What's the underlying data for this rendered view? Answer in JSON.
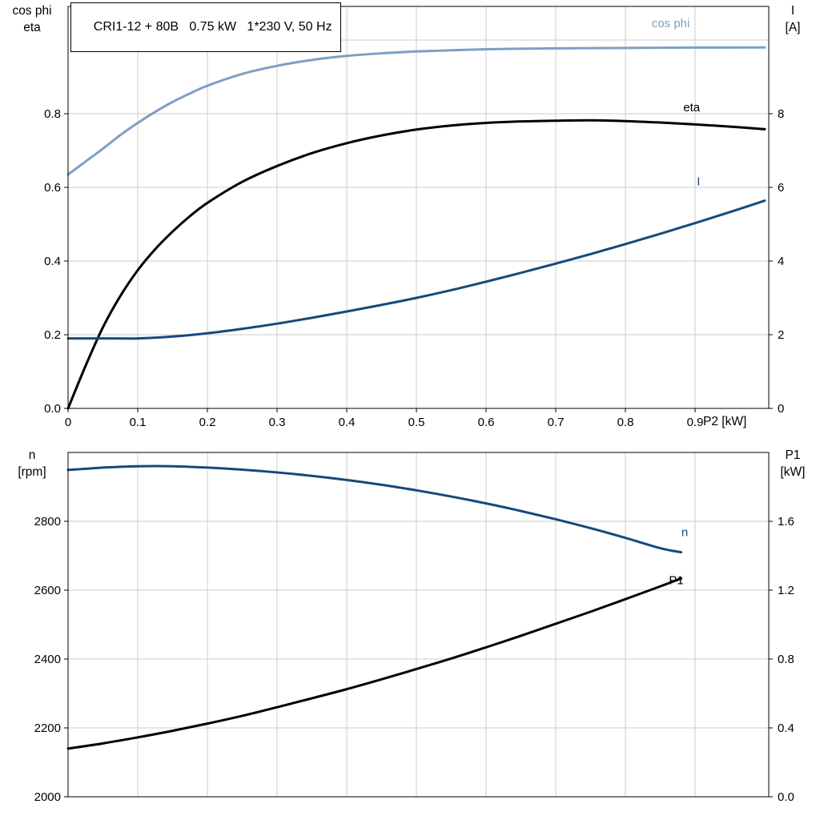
{
  "colors": {
    "black": "#000000",
    "dark_blue": "#16497B",
    "light_blue": "#7E9FC4",
    "grid": "#CCCCCC",
    "background": "#FFFFFF"
  },
  "chart_data": [
    {
      "type": "line",
      "title": "CRI1-12 + 80B   0.75 kW   1*230 V, 50 Hz",
      "x_axis": {
        "label": "P2 [kW]",
        "min": 0,
        "max": 1.0057,
        "ticks": [
          0,
          0.1,
          0.2,
          0.3,
          0.4,
          0.5,
          0.6,
          0.7,
          0.8,
          0.9
        ],
        "tick_labels": [
          "0",
          "0.1",
          "0.2",
          "0.3",
          "0.4",
          "0.5",
          "0.6",
          "0.7",
          "0.8",
          "0.9"
        ],
        "grid_values": [
          0.1,
          0.2,
          0.3,
          0.4,
          0.5,
          0.6,
          0.7,
          0.8,
          0.9
        ]
      },
      "y_left": {
        "label_lines": [
          "cos phi",
          "eta"
        ],
        "min": 0,
        "max": 1.0913,
        "ticks": [
          0,
          0.2,
          0.4,
          0.6,
          0.8
        ],
        "tick_labels": [
          "0.0",
          "0.2",
          "0.4",
          "0.6",
          "0.8"
        ],
        "grid_values": [
          0.2,
          0.4,
          0.6,
          0.8,
          1.0
        ]
      },
      "y_right": {
        "label_lines": [
          "I",
          "[A]"
        ],
        "min": 0,
        "max": 10.913,
        "ticks": [
          0,
          2,
          4,
          6,
          8
        ],
        "tick_labels": [
          "0",
          "2",
          "4",
          "6",
          "8"
        ],
        "grid_values": []
      },
      "series": [
        {
          "name": "cos phi",
          "axis": "left",
          "color_key": "light_blue",
          "label_pos": [
            0.865,
            1.035
          ],
          "points": [
            [
              0,
              0.635
            ],
            [
              0.025,
              0.67
            ],
            [
              0.05,
              0.705
            ],
            [
              0.075,
              0.742
            ],
            [
              0.1,
              0.775
            ],
            [
              0.125,
              0.805
            ],
            [
              0.15,
              0.832
            ],
            [
              0.175,
              0.855
            ],
            [
              0.2,
              0.876
            ],
            [
              0.25,
              0.908
            ],
            [
              0.3,
              0.93
            ],
            [
              0.35,
              0.946
            ],
            [
              0.4,
              0.957
            ],
            [
              0.45,
              0.964
            ],
            [
              0.5,
              0.969
            ],
            [
              0.6,
              0.975
            ],
            [
              0.7,
              0.9775
            ],
            [
              0.8,
              0.9785
            ],
            [
              0.9,
              0.9795
            ],
            [
              1.0,
              0.98
            ]
          ]
        },
        {
          "name": "eta",
          "axis": "left",
          "color_key": "black",
          "label_pos": [
            0.895,
            0.807
          ],
          "points": [
            [
              0,
              0
            ],
            [
              0.025,
              0.115
            ],
            [
              0.05,
              0.22
            ],
            [
              0.075,
              0.305
            ],
            [
              0.1,
              0.375
            ],
            [
              0.125,
              0.432
            ],
            [
              0.15,
              0.48
            ],
            [
              0.175,
              0.522
            ],
            [
              0.2,
              0.558
            ],
            [
              0.25,
              0.615
            ],
            [
              0.3,
              0.658
            ],
            [
              0.35,
              0.693
            ],
            [
              0.4,
              0.72
            ],
            [
              0.45,
              0.741
            ],
            [
              0.5,
              0.757
            ],
            [
              0.55,
              0.768
            ],
            [
              0.6,
              0.775
            ],
            [
              0.65,
              0.779
            ],
            [
              0.7,
              0.781
            ],
            [
              0.75,
              0.782
            ],
            [
              0.8,
              0.78
            ],
            [
              0.85,
              0.776
            ],
            [
              0.9,
              0.771
            ],
            [
              0.95,
              0.765
            ],
            [
              1.0,
              0.758
            ]
          ]
        },
        {
          "name": "I",
          "axis": "right",
          "color_key": "dark_blue",
          "label_pos": [
            0.905,
            6.05
          ],
          "points": [
            [
              0,
              1.9
            ],
            [
              0.05,
              1.9
            ],
            [
              0.1,
              1.9
            ],
            [
              0.15,
              1.95
            ],
            [
              0.2,
              2.04
            ],
            [
              0.25,
              2.16
            ],
            [
              0.3,
              2.3
            ],
            [
              0.35,
              2.46
            ],
            [
              0.4,
              2.63
            ],
            [
              0.45,
              2.81
            ],
            [
              0.5,
              3.0
            ],
            [
              0.55,
              3.21
            ],
            [
              0.6,
              3.44
            ],
            [
              0.65,
              3.68
            ],
            [
              0.7,
              3.93
            ],
            [
              0.75,
              4.19
            ],
            [
              0.8,
              4.46
            ],
            [
              0.85,
              4.74
            ],
            [
              0.9,
              5.03
            ],
            [
              0.95,
              5.33
            ],
            [
              1.0,
              5.64
            ]
          ]
        }
      ]
    },
    {
      "type": "line",
      "title": "",
      "x_axis": {
        "label": "",
        "min": 0,
        "max": 1.0057,
        "ticks": [],
        "tick_labels": [],
        "grid_values": [
          0.1,
          0.2,
          0.3,
          0.4,
          0.5,
          0.6,
          0.7,
          0.8,
          0.9
        ]
      },
      "y_left": {
        "label_lines": [
          "n",
          "[rpm]"
        ],
        "min": 2000,
        "max": 3000,
        "ticks": [
          2000,
          2200,
          2400,
          2600,
          2800
        ],
        "tick_labels": [
          "2000",
          "2200",
          "2400",
          "2600",
          "2800"
        ],
        "grid_values": [
          2200,
          2400,
          2600,
          2800
        ]
      },
      "y_right": {
        "label_lines": [
          "P1",
          "[kW]"
        ],
        "min": 0,
        "max": 2.0,
        "ticks": [
          0,
          0.4,
          0.8,
          1.2,
          1.6
        ],
        "tick_labels": [
          "0.0",
          "0.4",
          "0.8",
          "1.2",
          "1.6"
        ],
        "grid_values": []
      },
      "series": [
        {
          "name": "n",
          "axis": "left",
          "color_key": "dark_blue",
          "label_pos": [
            0.885,
            2757
          ],
          "points": [
            [
              0,
              2949
            ],
            [
              0.05,
              2956
            ],
            [
              0.1,
              2960
            ],
            [
              0.15,
              2960
            ],
            [
              0.2,
              2956
            ],
            [
              0.25,
              2950
            ],
            [
              0.3,
              2942
            ],
            [
              0.35,
              2932
            ],
            [
              0.4,
              2920
            ],
            [
              0.45,
              2906
            ],
            [
              0.5,
              2890
            ],
            [
              0.55,
              2872
            ],
            [
              0.6,
              2852
            ],
            [
              0.65,
              2830
            ],
            [
              0.7,
              2806
            ],
            [
              0.75,
              2780
            ],
            [
              0.8,
              2752
            ],
            [
              0.85,
              2722
            ],
            [
              0.88,
              2710
            ]
          ]
        },
        {
          "name": "P1",
          "axis": "right",
          "color_key": "black",
          "label_pos": [
            0.873,
            1.235
          ],
          "points": [
            [
              0,
              0.28
            ],
            [
              0.05,
              0.31
            ],
            [
              0.1,
              0.345
            ],
            [
              0.15,
              0.383
            ],
            [
              0.2,
              0.425
            ],
            [
              0.25,
              0.47
            ],
            [
              0.3,
              0.52
            ],
            [
              0.35,
              0.572
            ],
            [
              0.4,
              0.625
            ],
            [
              0.45,
              0.682
            ],
            [
              0.5,
              0.742
            ],
            [
              0.55,
              0.803
            ],
            [
              0.6,
              0.868
            ],
            [
              0.65,
              0.935
            ],
            [
              0.7,
              1.005
            ],
            [
              0.75,
              1.075
            ],
            [
              0.8,
              1.148
            ],
            [
              0.85,
              1.222
            ],
            [
              0.88,
              1.268
            ]
          ]
        }
      ]
    }
  ]
}
